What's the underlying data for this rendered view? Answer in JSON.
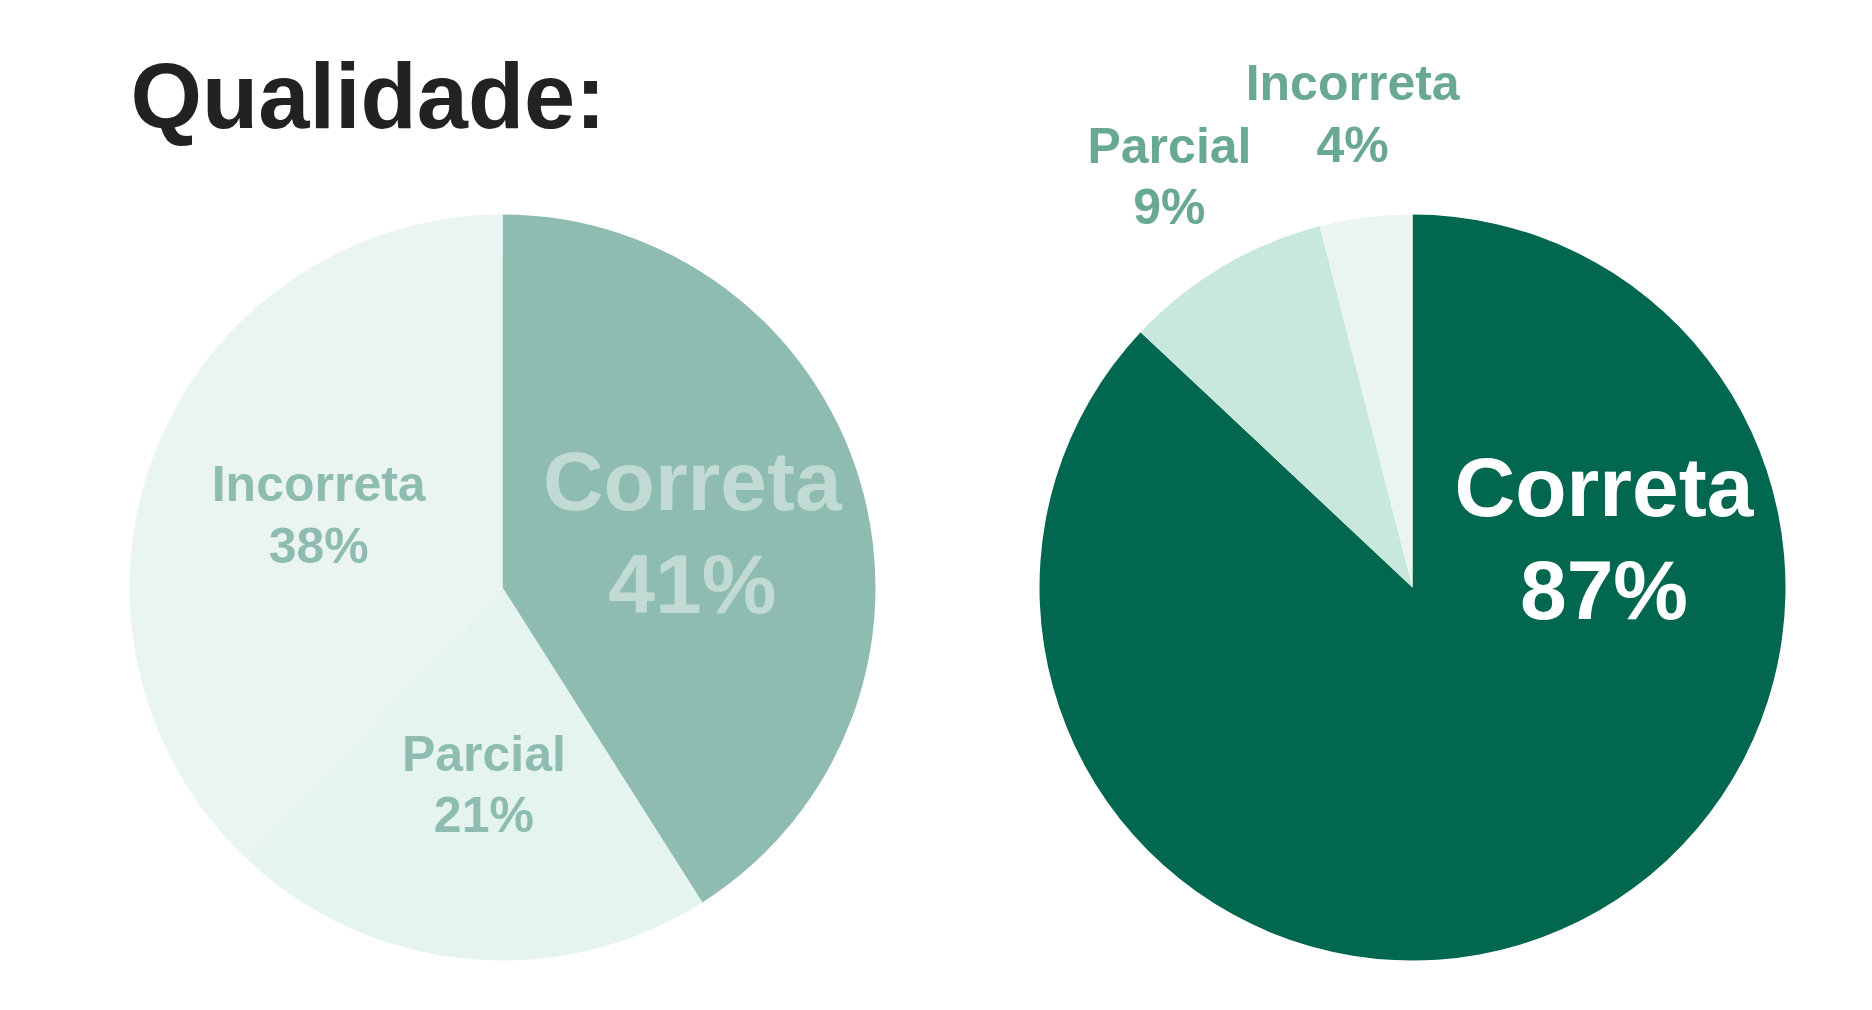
{
  "chart_data": [
    {
      "type": "pie",
      "title": "Qualidade:",
      "categories": [
        "Correta",
        "Parcial",
        "Incorreta"
      ],
      "values": [
        41,
        21,
        38
      ],
      "colors": [
        "#8fbcb0",
        "#e6f4ef",
        "#eaf5f1"
      ],
      "value_labels": [
        "41%",
        "21%",
        "38%"
      ]
    },
    {
      "type": "pie",
      "categories": [
        "Correta",
        "Parcial",
        "Incorreta"
      ],
      "values": [
        87,
        9,
        4
      ],
      "colors": [
        "#02674f",
        "#c9e8dd",
        "#eaf5f1"
      ],
      "value_labels": [
        "87%",
        "9%",
        "4%"
      ]
    }
  ]
}
